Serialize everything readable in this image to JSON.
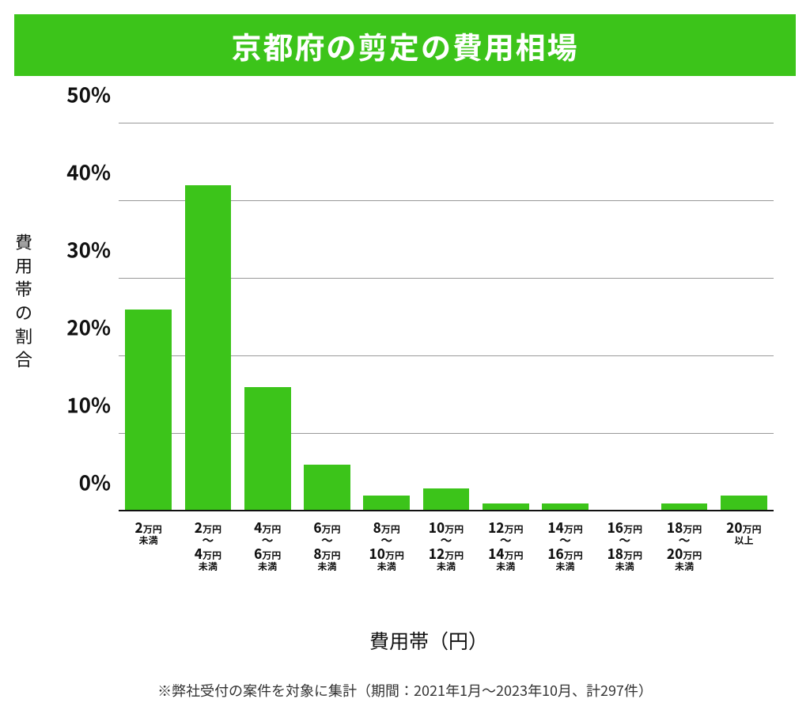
{
  "title": "京都府の剪定の費用相場",
  "chart": {
    "type": "bar",
    "y_axis_title": "費用帯の割合",
    "x_axis_title": "費用帯（円）",
    "ylim": [
      0,
      50
    ],
    "ytick_step": 10,
    "y_ticks": [
      "0%",
      "10%",
      "20%",
      "30%",
      "40%",
      "50%"
    ],
    "grid_color": "#999999",
    "baseline_color": "#111111",
    "background_color": "#ffffff",
    "bar_color": "#3cc41a",
    "title_bg_color": "#3cc41a",
    "title_text_color": "#ffffff",
    "bar_width_ratio": 0.78,
    "categories": [
      {
        "top_num": "2",
        "top_unit": "万円",
        "sub": "未満"
      },
      {
        "top_num": "2",
        "top_unit": "万円",
        "tilde": true,
        "bot_num": "4",
        "bot_unit": "万円",
        "sub": "未満"
      },
      {
        "top_num": "4",
        "top_unit": "万円",
        "tilde": true,
        "bot_num": "6",
        "bot_unit": "万円",
        "sub": "未満"
      },
      {
        "top_num": "6",
        "top_unit": "万円",
        "tilde": true,
        "bot_num": "8",
        "bot_unit": "万円",
        "sub": "未満"
      },
      {
        "top_num": "8",
        "top_unit": "万円",
        "tilde": true,
        "bot_num": "10",
        "bot_unit": "万円",
        "sub": "未満"
      },
      {
        "top_num": "10",
        "top_unit": "万円",
        "tilde": true,
        "bot_num": "12",
        "bot_unit": "万円",
        "sub": "未満"
      },
      {
        "top_num": "12",
        "top_unit": "万円",
        "tilde": true,
        "bot_num": "14",
        "bot_unit": "万円",
        "sub": "未満"
      },
      {
        "top_num": "14",
        "top_unit": "万円",
        "tilde": true,
        "bot_num": "16",
        "bot_unit": "万円",
        "sub": "未満"
      },
      {
        "top_num": "16",
        "top_unit": "万円",
        "tilde": true,
        "bot_num": "18",
        "bot_unit": "万円",
        "sub": "未満"
      },
      {
        "top_num": "18",
        "top_unit": "万円",
        "tilde": true,
        "bot_num": "20",
        "bot_unit": "万円",
        "sub": "未満"
      },
      {
        "top_num": "20",
        "top_unit": "万円",
        "sub": "以上"
      }
    ],
    "values": [
      26,
      42,
      16,
      6,
      2,
      3,
      1,
      1,
      0,
      1,
      2
    ],
    "tick_label_fontsize": 26,
    "tick_label_fontweight": 700,
    "axis_title_fontsize": 25,
    "y_axis_title_fontsize": 22,
    "title_fontsize": 38
  },
  "footnote": "※弊社受付の案件を対象に集計（期間：2021年1月～2023年10月、計297件）"
}
